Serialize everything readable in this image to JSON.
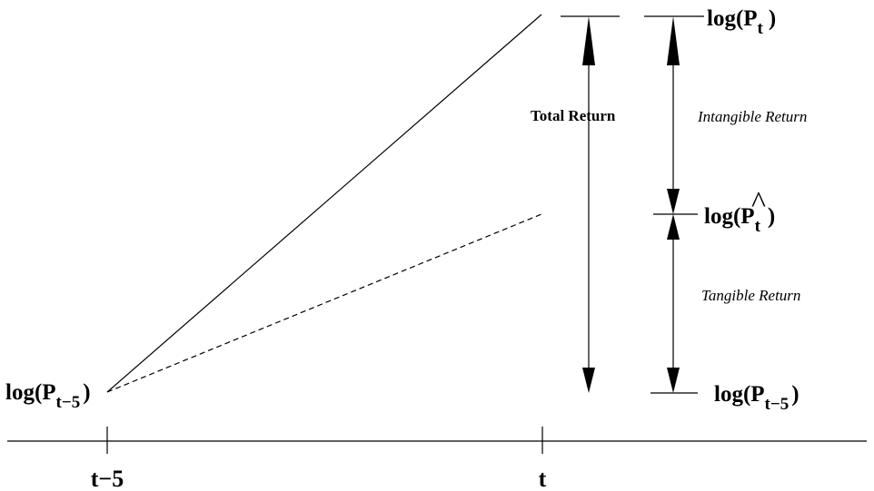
{
  "diagram": {
    "left_label": {
      "prefix": "log(P",
      "sub": "t−5",
      "suffix": ")"
    },
    "right_top_label": {
      "prefix": "log(P",
      "sub": "t",
      "suffix": ")"
    },
    "right_mid_label": {
      "prefix": "log(",
      "base": "P",
      "hat": "^",
      "sub": "t",
      "suffix": ")"
    },
    "right_bottom_label": {
      "prefix": "log(P",
      "sub": "t−5",
      "suffix": ")"
    },
    "total_return_label": "Total Return",
    "intangible_return_label": "Intangible Return",
    "tangible_return_label": "Tangible Return",
    "x_ticks": [
      "t−5",
      "t"
    ]
  },
  "colors": {
    "stroke": "#000000",
    "background": "#ffffff"
  }
}
